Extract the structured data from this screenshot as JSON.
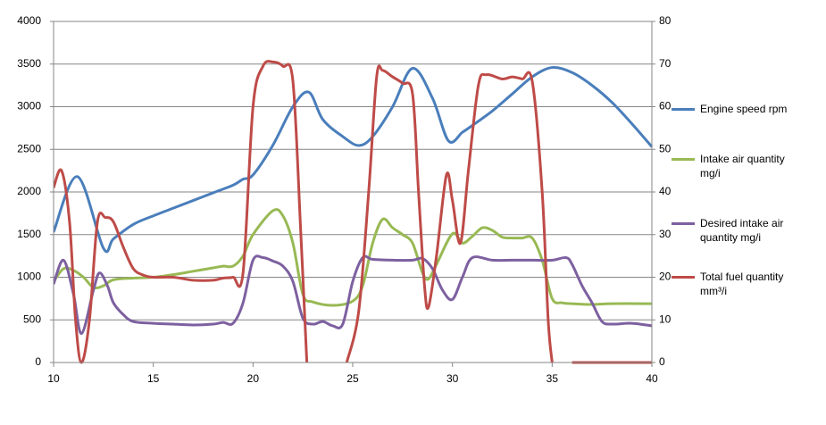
{
  "chart_data": {
    "type": "line",
    "xlim": [
      10,
      40
    ],
    "xticks": [
      10,
      15,
      20,
      25,
      30,
      35,
      40
    ],
    "ylim": [
      0,
      4000
    ],
    "yticks": [
      0,
      500,
      1000,
      1500,
      2000,
      2500,
      3000,
      3500,
      4000
    ],
    "y2lim": [
      0,
      80
    ],
    "y2ticks": [
      0,
      10,
      20,
      30,
      40,
      50,
      60,
      70,
      80
    ],
    "grid": true,
    "legend": "right",
    "series": [
      {
        "name": "Engine speed rpm",
        "color": "#4a7ebb",
        "x": [
          10,
          11.2,
          12.5,
          13,
          14,
          15,
          16,
          17,
          18,
          19,
          19.5,
          20,
          21,
          22,
          22.8,
          23.5,
          24.5,
          25.3,
          26,
          27,
          28,
          29,
          29.8,
          30.5,
          31,
          32,
          33,
          34,
          35,
          36,
          37,
          38,
          39,
          40
        ],
        "values": [
          1530,
          2180,
          1340,
          1450,
          1620,
          1720,
          1810,
          1900,
          1990,
          2080,
          2150,
          2200,
          2550,
          3000,
          3170,
          2850,
          2650,
          2545,
          2650,
          3000,
          3450,
          3100,
          2600,
          2700,
          2780,
          2950,
          3150,
          3350,
          3460,
          3400,
          3250,
          3050,
          2800,
          2530
        ]
      },
      {
        "name": "Intake air quantity mg/i",
        "color": "#98b954",
        "x": [
          10,
          10.5,
          11,
          11.5,
          12,
          12.5,
          13,
          14,
          15,
          16,
          17,
          18,
          18.5,
          19,
          19.5,
          20,
          21,
          21.5,
          22,
          22.5,
          23,
          24,
          25,
          25.5,
          26,
          26.5,
          27,
          27.5,
          28,
          28.5,
          28.8,
          29.2,
          30,
          30.5,
          31,
          31.5,
          32,
          32.5,
          33,
          33.5,
          34,
          34.5,
          35,
          35.5,
          36,
          37,
          38,
          40
        ],
        "values": [
          950,
          1100,
          1080,
          1000,
          880,
          900,
          970,
          990,
          1000,
          1030,
          1070,
          1110,
          1130,
          1130,
          1250,
          1500,
          1780,
          1720,
          1400,
          800,
          710,
          670,
          720,
          900,
          1400,
          1680,
          1580,
          1500,
          1400,
          1050,
          980,
          1150,
          1510,
          1400,
          1480,
          1580,
          1550,
          1470,
          1460,
          1460,
          1460,
          1200,
          750,
          700,
          690,
          680,
          690,
          690
        ]
      },
      {
        "name": "Desired intake air quantity mg/i",
        "color": "#7d60a0",
        "x": [
          10,
          10.5,
          11,
          11.4,
          12,
          12.3,
          12.7,
          13,
          13.5,
          14,
          15,
          16,
          17,
          18,
          18.5,
          19,
          19.5,
          20,
          20.5,
          21,
          21.5,
          22,
          22.5,
          23,
          23.5,
          24,
          24.5,
          25,
          25.5,
          26,
          27,
          28,
          28.5,
          29,
          29.5,
          30,
          30.5,
          31,
          32,
          33,
          34,
          35,
          35.7,
          36,
          36.5,
          37,
          37.5,
          38,
          39,
          40
        ],
        "values": [
          920,
          1200,
          800,
          340,
          850,
          1050,
          900,
          700,
          560,
          480,
          460,
          450,
          440,
          450,
          470,
          460,
          700,
          1200,
          1230,
          1190,
          1130,
          950,
          520,
          450,
          480,
          430,
          450,
          950,
          1230,
          1210,
          1200,
          1200,
          1220,
          1100,
          850,
          740,
          1000,
          1230,
          1200,
          1200,
          1200,
          1200,
          1230,
          1150,
          900,
          700,
          480,
          450,
          460,
          430
        ]
      },
      {
        "name": "Total fuel quantity mm³/i",
        "color": "#be4b48",
        "axis": "y2",
        "x": [
          10,
          10.4,
          10.8,
          11.1,
          11.4,
          11.8,
          12.2,
          12.6,
          13,
          13.5,
          14,
          14.5,
          15,
          16,
          17,
          18,
          18.5,
          19,
          19.5,
          20,
          20.5,
          21,
          21.5,
          22,
          22.4,
          22.7,
          23.5,
          24.7,
          25.3,
          25.8,
          26.2,
          26.5,
          27,
          27.5,
          28,
          28.3,
          28.6,
          28.8,
          29.2,
          29.7,
          30,
          30.4,
          30.8,
          31.3,
          31.7,
          32.5,
          33,
          33.5,
          34,
          34.5,
          34.8,
          35,
          35.5,
          36,
          37,
          38,
          39,
          40
        ],
        "values": [
          41,
          45,
          33,
          10,
          0,
          10,
          33,
          34,
          33,
          27,
          22,
          20.5,
          20,
          20,
          19.3,
          19.3,
          19.8,
          20,
          21,
          60,
          69.5,
          70.5,
          69.5,
          66,
          30,
          0,
          null,
          0,
          12,
          40,
          67,
          68.5,
          67,
          65.5,
          63,
          40,
          18,
          13,
          25,
          44,
          38,
          28,
          45,
          65,
          67.5,
          66.5,
          67,
          66.5,
          66,
          40,
          10,
          0,
          null,
          0,
          0,
          0,
          0,
          0
        ]
      }
    ]
  }
}
